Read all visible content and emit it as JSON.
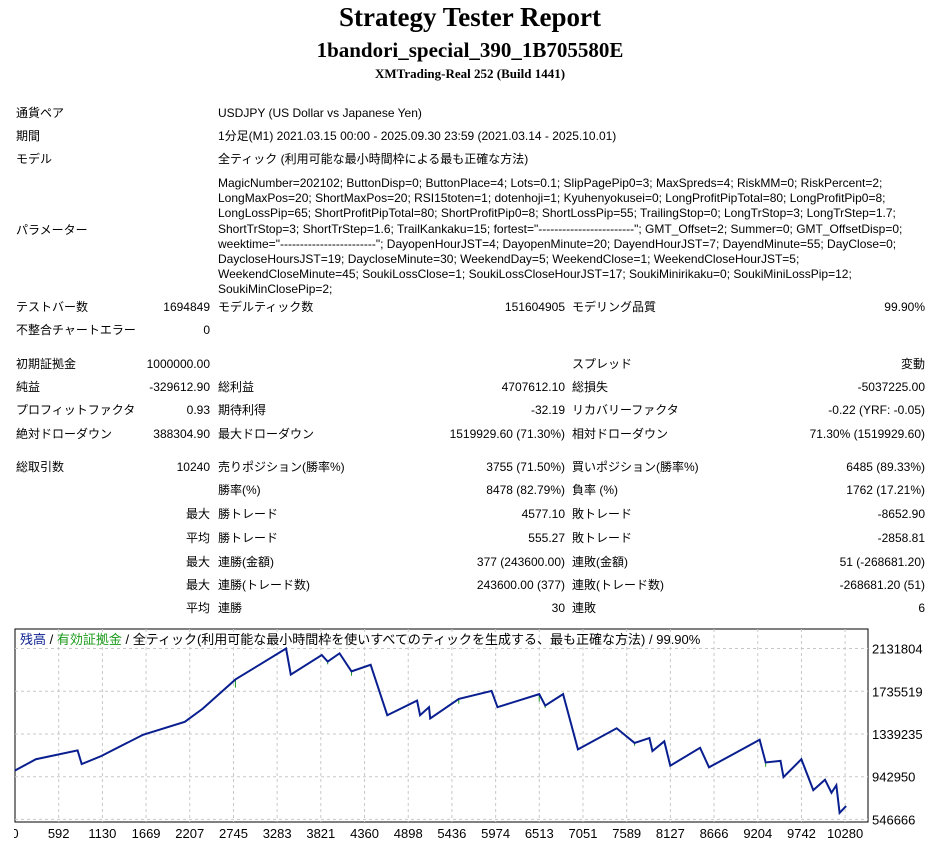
{
  "header": {
    "title": "Strategy Tester Report",
    "ea_name": "1bandori_special_390_1B705580E",
    "server": "XMTrading-Real 252 (Build 1441)"
  },
  "info": [
    {
      "label": "通貨ペア",
      "value": "USDJPY (US Dollar vs Japanese Yen)"
    },
    {
      "label": "期間",
      "value": "1分足(M1) 2021.03.15 00:00 - 2025.09.30 23:59 (2021.03.14 - 2025.10.01)"
    },
    {
      "label": "モデル",
      "value": "全ティック (利用可能な最小時間枠による最も正確な方法)"
    }
  ],
  "parameters": {
    "label": "パラメーター",
    "value": "MagicNumber=202102; ButtonDisp=0; ButtonPlace=4; Lots=0.1; SlipPagePip0=3; MaxSpreds=4; RiskMM=0; RiskPercent=2; LongMaxPos=20; ShortMaxPos=20; RSI15toten=1; dotenhoji=1; Kyuhenyokusei=0; LongProfitPipTotal=80; LongProfitPip0=8; LongLossPip=65; ShortProfitPipTotal=80; ShortProfitPip0=8; ShortLossPip=55; TrailingStop=0; LongTrStop=3; LongTrStep=1.7; ShortTrStop=3; ShortTrStep=1.6; TrailKankaku=15; fortest=\"------------------------\"; GMT_Offset=2; Summer=0; GMT_OffsetDisp=0; weektime=\"------------------------\"; DayopenHourJST=4; DayopenMinute=20; DayendHourJST=7; DayendMinute=55; DayClose=0; DaycloseHoursJST=19; DaycloseMinute=30; WeekendDay=5; WeekendClose=1; WeekendCloseHourJST=5; WeekendCloseMinute=45; SoukiLossClose=1; SoukiLossCloseHourJST=17; SoukiMinirikaku=0; SoukiMiniLossPip=12; SoukiMinClosePip=2;"
  },
  "stats": [
    [
      "テストバー数",
      "1694849",
      "モデルティック数",
      "151604905",
      "モデリング品質",
      "99.90%"
    ],
    [
      "不整合チャートエラー",
      "0",
      "",
      "",
      "",
      ""
    ],
    [
      "初期証拠金",
      "1000000.00",
      "",
      "",
      "スプレッド",
      "変動"
    ],
    [
      "純益",
      "-329612.90",
      "総利益",
      "4707612.10",
      "総損失",
      "-5037225.00"
    ],
    [
      "プロフィットファクタ",
      "0.93",
      "期待利得",
      "-32.19",
      "リカバリーファクタ",
      "-0.22 (YRF: -0.05)"
    ],
    [
      "絶対ドローダウン",
      "388304.90",
      "最大ドローダウン",
      "1519929.60 (71.30%)",
      "相対ドローダウン",
      "71.30% (1519929.60)"
    ],
    [
      "総取引数",
      "10240",
      "売りポジション(勝率%)",
      "3755 (71.50%)",
      "買いポジション(勝率%)",
      "6485 (89.33%)"
    ],
    [
      "",
      "",
      "勝率(%)",
      "8478 (82.79%)",
      "負率 (%)",
      "1762 (17.21%)"
    ],
    [
      "",
      "最大",
      "勝トレード",
      "4577.10",
      "敗トレード",
      "-8652.90"
    ],
    [
      "",
      "平均",
      "勝トレード",
      "555.27",
      "敗トレード",
      "-2858.81"
    ],
    [
      "",
      "最大",
      "連勝(金額)",
      "377 (243600.00)",
      "連敗(金額)",
      "51 (-268681.20)"
    ],
    [
      "",
      "最大",
      "連勝(トレード数)",
      "243600.00 (377)",
      "連敗(トレード数)",
      "-268681.20 (51)"
    ],
    [
      "",
      "平均",
      "連勝",
      "30",
      "連敗",
      "6"
    ]
  ],
  "chart_data": {
    "type": "line",
    "legend": {
      "balance": "残高",
      "sep1": " / ",
      "equity": "有効証拠金",
      "sep2": " / ",
      "model": "全ティック(利用可能な最小時間枠を使いすべてのティックを生成する、最も正確な方法)",
      "sep3": " / ",
      "quality": "99.90%"
    },
    "colors": {
      "balance": "#0a1f8f",
      "equity": "#1a9a1a",
      "grid": "#c8c8c8"
    },
    "xlim": [
      0,
      10510
    ],
    "ylim": [
      522700,
      2313000
    ],
    "xticks": [
      "0",
      "592",
      "1130",
      "1669",
      "2207",
      "2745",
      "3283",
      "3821",
      "4360",
      "4898",
      "5436",
      "5974",
      "6513",
      "7051",
      "7589",
      "8127",
      "8666",
      "9204",
      "9742",
      "10280"
    ],
    "xtick_values": [
      0,
      538,
      1077,
      1615,
      2153,
      2692,
      3230,
      3768,
      4307,
      4845,
      5383,
      5922,
      6460,
      6998,
      7537,
      8075,
      8613,
      9152,
      9690,
      10228
    ],
    "yticks": [
      2131804,
      1735519,
      1339235,
      942950,
      546666
    ],
    "balance": {
      "x": [
        0,
        257,
        771,
        822,
        1064,
        1578,
        2092,
        2312,
        2716,
        3340,
        3398,
        3780,
        3853,
        3999,
        4146,
        4382,
        4587,
        4954,
        4991,
        5101,
        5116,
        5468,
        5872,
        5945,
        6459,
        6533,
        6753,
        6936,
        7413,
        7634,
        7817,
        7854,
        8000,
        8074,
        8441,
        8551,
        8845,
        9175,
        9249,
        9432,
        9469,
        9689,
        9836,
        9980,
        10060,
        10120,
        10160,
        10240
      ],
      "y": [
        1000000,
        1105000,
        1187000,
        1060000,
        1135000,
        1332000,
        1452000,
        1573000,
        1845000,
        2131800,
        1890000,
        2071000,
        2011000,
        2087000,
        1920000,
        1981000,
        1513000,
        1649000,
        1513000,
        1588000,
        1483000,
        1664000,
        1739000,
        1588000,
        1709000,
        1603000,
        1709000,
        1196000,
        1392000,
        1256000,
        1301000,
        1181000,
        1271000,
        1045000,
        1211000,
        1030000,
        1150000,
        1286000,
        1075000,
        1090000,
        939000,
        1105000,
        818000,
        915000,
        794000,
        864000,
        607000,
        670387
      ]
    },
    "equity_dips": [
      {
        "x": 2716,
        "y": 1770000
      },
      {
        "x": 3853,
        "y": 1985000
      },
      {
        "x": 4146,
        "y": 1880000
      },
      {
        "x": 5468,
        "y": 1620000
      },
      {
        "x": 6459,
        "y": 1640000
      },
      {
        "x": 6533,
        "y": 1580000
      },
      {
        "x": 7634,
        "y": 1230000
      },
      {
        "x": 9249,
        "y": 1035000
      }
    ]
  }
}
